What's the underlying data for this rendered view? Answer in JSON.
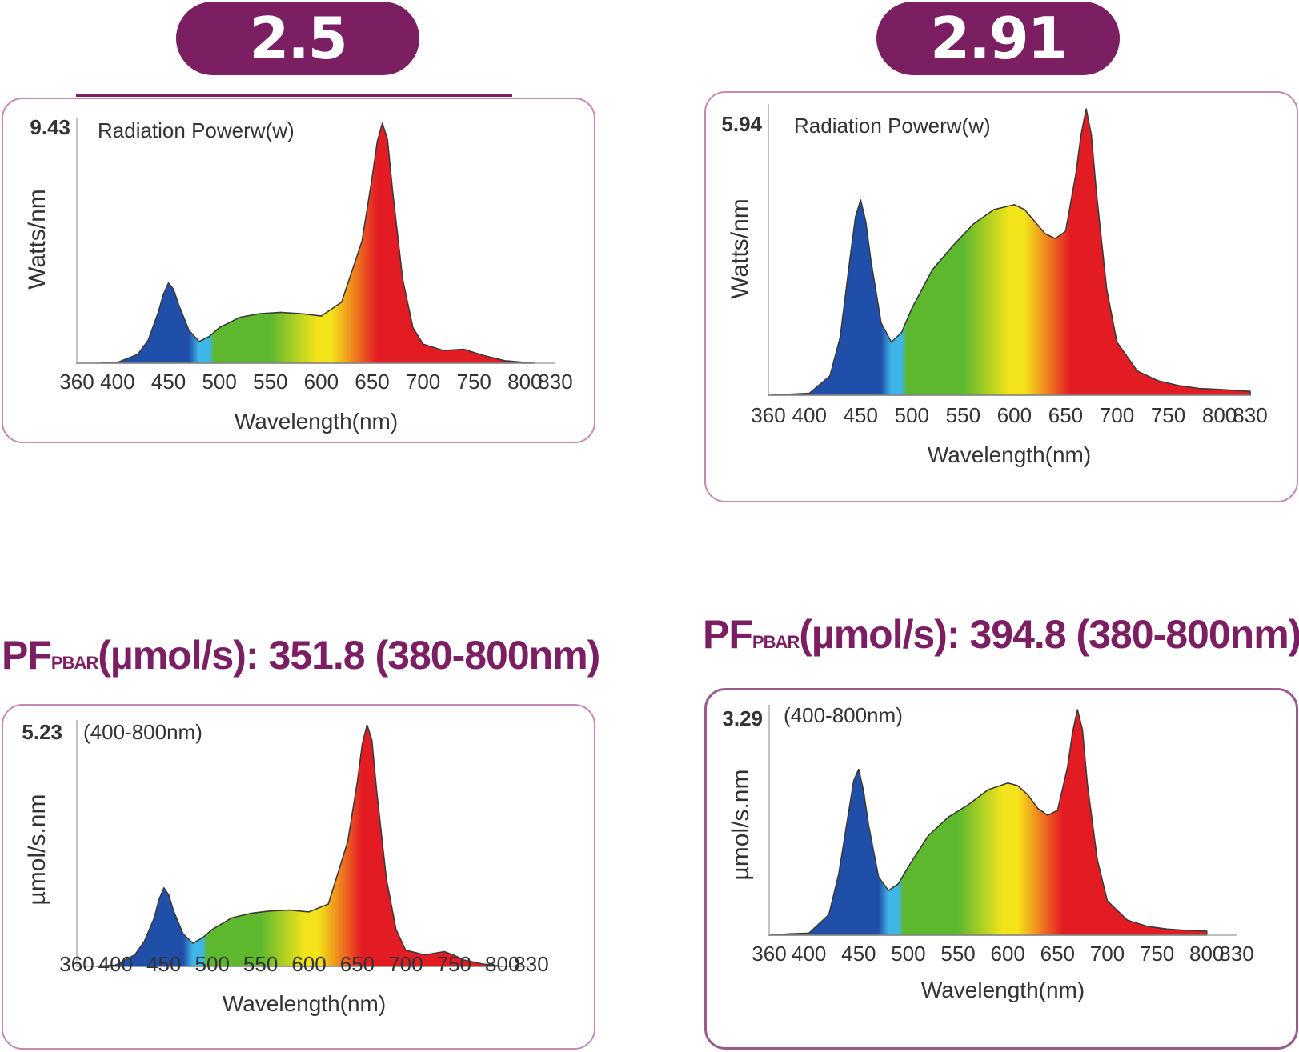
{
  "left": {
    "badge": "2.5",
    "pf_heading": {
      "prefix": "PF",
      "sub": "PBAR",
      "rest": "(µmol/s): 351.8 (380-800nm)"
    }
  },
  "right": {
    "badge": "2.91",
    "pf_heading": {
      "prefix": "PF",
      "sub": "PBAR",
      "rest": "(µmol/s): 394.8 (380-800nm)"
    }
  },
  "colors": {
    "brand_purple": "#7b1f62",
    "panel_border": "#c58ab3",
    "blue": "#1f4fa8",
    "cyan": "#3fb6e8",
    "green": "#5db82e",
    "yellow": "#f2e31a",
    "orange": "#f08a1e",
    "red": "#e31b23"
  },
  "chart_data": [
    {
      "id": "left-radiation",
      "type": "area",
      "title": "Radiation Powerw(w)",
      "ymax_label": "9.43",
      "ylabel": "Watts/nm",
      "xlabel": "Wavelength(nm)",
      "xticks": [
        "360",
        "400",
        "450",
        "500",
        "550",
        "600",
        "650",
        "700",
        "750",
        "800",
        "830"
      ],
      "xlim": [
        360,
        830
      ],
      "ylim": [
        0,
        9.43
      ],
      "x": [
        360,
        380,
        400,
        420,
        430,
        440,
        445,
        450,
        455,
        460,
        470,
        480,
        490,
        500,
        520,
        540,
        560,
        580,
        600,
        620,
        640,
        650,
        655,
        660,
        665,
        670,
        680,
        690,
        700,
        720,
        740,
        750,
        760,
        780,
        800,
        810
      ],
      "y": [
        0,
        0,
        0.03,
        0.35,
        0.9,
        2.0,
        2.7,
        3.15,
        2.9,
        2.3,
        1.3,
        0.85,
        1.05,
        1.4,
        1.8,
        1.95,
        2.0,
        1.95,
        1.85,
        2.4,
        4.8,
        7.3,
        8.7,
        9.43,
        8.8,
        6.8,
        3.3,
        1.4,
        0.75,
        0.5,
        0.55,
        0.42,
        0.3,
        0.1,
        0.03,
        0
      ]
    },
    {
      "id": "right-radiation",
      "type": "area",
      "title": "Radiation Powerw(w)",
      "ymax_label": "5.94",
      "ylabel": "Watts/nm",
      "xlabel": "Wavelength(nm)",
      "xticks": [
        "360",
        "400",
        "450",
        "500",
        "550",
        "600",
        "650",
        "700",
        "750",
        "800",
        "830"
      ],
      "xlim": [
        360,
        830
      ],
      "ylim": [
        0,
        5.94
      ],
      "x": [
        360,
        380,
        400,
        420,
        430,
        440,
        445,
        450,
        455,
        460,
        470,
        480,
        490,
        500,
        520,
        540,
        560,
        580,
        600,
        610,
        620,
        630,
        640,
        650,
        660,
        665,
        670,
        675,
        680,
        690,
        700,
        720,
        740,
        760,
        780,
        800,
        830
      ],
      "y": [
        0,
        0.02,
        0.04,
        0.4,
        1.2,
        2.9,
        3.7,
        4.05,
        3.6,
        2.8,
        1.5,
        1.1,
        1.3,
        1.8,
        2.6,
        3.1,
        3.55,
        3.85,
        3.95,
        3.85,
        3.6,
        3.35,
        3.25,
        3.4,
        4.6,
        5.4,
        5.94,
        5.4,
        4.2,
        2.2,
        1.1,
        0.5,
        0.3,
        0.2,
        0.14,
        0.12,
        0.08
      ]
    },
    {
      "id": "left-pfd",
      "type": "area",
      "title": "(400-800nm)",
      "ymax_label": "5.23",
      "ylabel": "µmol/s.nm",
      "xlabel": "Wavelength(nm)",
      "xticks": [
        "360",
        "400",
        "450",
        "500",
        "550",
        "600",
        "650",
        "700",
        "750",
        "800",
        "830"
      ],
      "xlim": [
        360,
        830
      ],
      "ylim": [
        0,
        5.23
      ],
      "x": [
        380,
        400,
        420,
        430,
        440,
        445,
        450,
        455,
        460,
        470,
        480,
        490,
        500,
        520,
        540,
        560,
        580,
        600,
        620,
        640,
        650,
        655,
        660,
        665,
        670,
        680,
        690,
        700,
        720,
        740,
        750,
        760,
        780,
        800
      ],
      "y": [
        0,
        0.03,
        0.25,
        0.55,
        1.05,
        1.45,
        1.7,
        1.55,
        1.2,
        0.7,
        0.5,
        0.62,
        0.8,
        1.05,
        1.15,
        1.2,
        1.22,
        1.18,
        1.35,
        2.7,
        4.0,
        4.8,
        5.23,
        4.9,
        3.8,
        1.9,
        0.8,
        0.35,
        0.25,
        0.32,
        0.24,
        0.14,
        0.05,
        0
      ]
    },
    {
      "id": "right-pfd",
      "type": "area",
      "title": "(400-800nm)",
      "ymax_label": "3.29",
      "ylabel": "µmol/s.nm",
      "xlabel": "Wavelength(nm)",
      "xticks": [
        "360",
        "400",
        "450",
        "500",
        "550",
        "600",
        "650",
        "700",
        "750",
        "800",
        "830"
      ],
      "xlim": [
        360,
        830
      ],
      "ylim": [
        0,
        3.29
      ],
      "x": [
        360,
        380,
        400,
        420,
        430,
        440,
        445,
        450,
        455,
        460,
        470,
        480,
        490,
        500,
        520,
        540,
        560,
        580,
        600,
        610,
        620,
        630,
        640,
        650,
        660,
        665,
        670,
        675,
        680,
        690,
        700,
        720,
        740,
        760,
        780,
        800
      ],
      "y": [
        0,
        0.02,
        0.03,
        0.3,
        0.9,
        1.8,
        2.25,
        2.42,
        2.1,
        1.6,
        0.85,
        0.65,
        0.75,
        1.0,
        1.45,
        1.72,
        1.9,
        2.12,
        2.22,
        2.18,
        2.05,
        1.85,
        1.75,
        1.82,
        2.45,
        2.95,
        3.29,
        3.0,
        2.2,
        1.1,
        0.5,
        0.22,
        0.13,
        0.09,
        0.07,
        0.06
      ]
    }
  ]
}
